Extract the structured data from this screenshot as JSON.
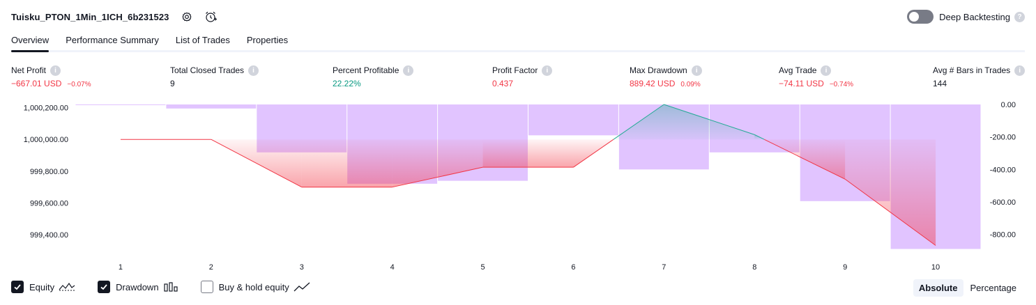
{
  "header": {
    "strategy_name": "Tuisku_PTON_1Min_1ICH_6b231523",
    "settings_icon": "gear-icon",
    "alert_icon": "alarm-clock-icon",
    "deep_backtesting_label": "Deep Backtesting",
    "deep_backtesting_enabled": false
  },
  "tabs": [
    {
      "label": "Overview",
      "active": true
    },
    {
      "label": "Performance Summary",
      "active": false
    },
    {
      "label": "List of Trades",
      "active": false
    },
    {
      "label": "Properties",
      "active": false
    }
  ],
  "metrics": [
    {
      "label": "Net Profit",
      "value": "−667.01 USD",
      "sub": "−0.07%"
    },
    {
      "label": "Total Closed Trades",
      "value": "9",
      "sub": ""
    },
    {
      "label": "Percent Profitable",
      "value": "22.22%",
      "sub": ""
    },
    {
      "label": "Profit Factor",
      "value": "0.437",
      "sub": ""
    },
    {
      "label": "Max Drawdown",
      "value": "889.42 USD",
      "sub": "0.09%"
    },
    {
      "label": "Avg Trade",
      "value": "−74.11 USD",
      "sub": "−0.74%"
    },
    {
      "label": "Avg # Bars in Trades",
      "value": "144",
      "sub": ""
    }
  ],
  "colors": {
    "negative": "#f23645",
    "positive": "#089981",
    "drawdown_bar": "#e1c4ff",
    "equity_line_down": "#f23645",
    "equity_line_up": "#22ab94"
  },
  "chart_data": {
    "type": "line",
    "x": [
      1,
      2,
      3,
      4,
      5,
      6,
      7,
      8,
      9,
      10
    ],
    "series": [
      {
        "name": "Equity",
        "values": [
          1000000.0,
          1000000.0,
          999700.0,
          999700.0,
          999825.0,
          999825.0,
          1000220.0,
          1000030.0,
          999750.0,
          999333.0
        ]
      },
      {
        "name": "Drawdown",
        "values": [
          -2.0,
          -25.0,
          -295.0,
          -488.0,
          -470.0,
          -190.0,
          -400.0,
          -295.0,
          -595.0,
          -889.42
        ]
      }
    ],
    "y_left_ticks": [
      "1,000,200.00",
      "1,000,000.00",
      "999,800.00",
      "999,600.00",
      "999,400.00"
    ],
    "y_right_ticks": [
      "0.00",
      "-200.00",
      "-400.00",
      "-600.00",
      "-800.00"
    ],
    "x_tick_labels": [
      "1",
      "2",
      "3",
      "4",
      "5",
      "6",
      "7",
      "8",
      "9",
      "10"
    ],
    "ylim_left": [
      999300,
      1000220
    ],
    "ylim_right": [
      -900,
      0
    ],
    "baseline": 1000000
  },
  "legend": [
    {
      "label": "Equity",
      "checked": true,
      "icon": "equity-line-icon"
    },
    {
      "label": "Drawdown",
      "checked": true,
      "icon": "drawdown-bars-icon"
    },
    {
      "label": "Buy & hold equity",
      "checked": false,
      "icon": "buy-hold-line-icon"
    }
  ],
  "mode": {
    "options": [
      "Absolute",
      "Percentage"
    ],
    "selected": "Absolute"
  }
}
